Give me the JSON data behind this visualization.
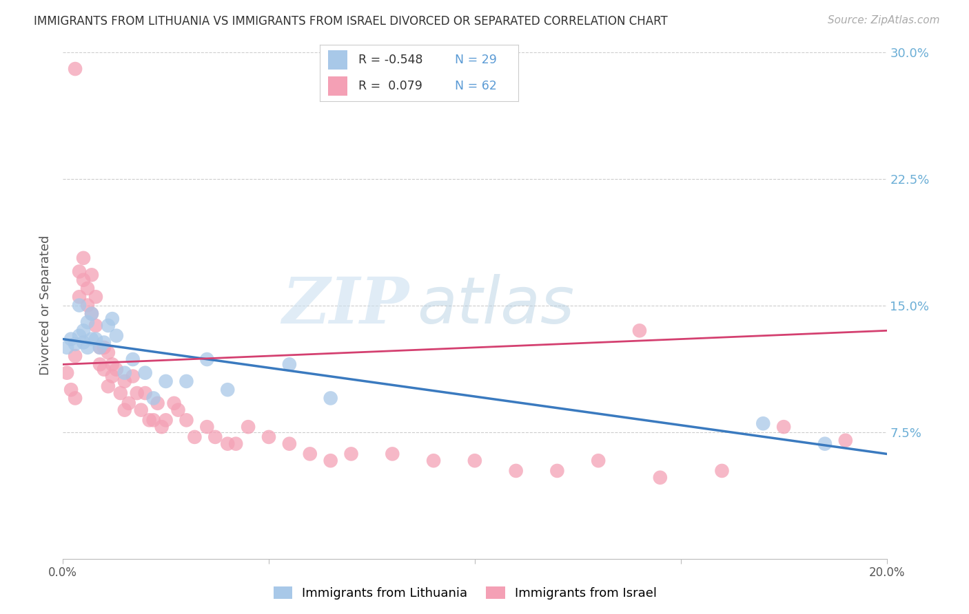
{
  "title": "IMMIGRANTS FROM LITHUANIA VS IMMIGRANTS FROM ISRAEL DIVORCED OR SEPARATED CORRELATION CHART",
  "source": "Source: ZipAtlas.com",
  "ylabel": "Divorced or Separated",
  "legend_labels": [
    "Immigrants from Lithuania",
    "Immigrants from Israel"
  ],
  "blue_color": "#a8c8e8",
  "pink_color": "#f4a0b5",
  "blue_line_color": "#3a7abf",
  "pink_line_color": "#d44070",
  "xlim": [
    0.0,
    0.2
  ],
  "ylim": [
    0.0,
    0.3
  ],
  "yticks_right": [
    0.075,
    0.15,
    0.225,
    0.3
  ],
  "ytick_labels_right": [
    "7.5%",
    "15.0%",
    "22.5%",
    "30.0%"
  ],
  "watermark_zip": "ZIP",
  "watermark_atlas": "atlas",
  "blue_scatter_x": [
    0.001,
    0.002,
    0.003,
    0.004,
    0.004,
    0.005,
    0.005,
    0.006,
    0.006,
    0.007,
    0.007,
    0.008,
    0.009,
    0.01,
    0.011,
    0.012,
    0.013,
    0.015,
    0.017,
    0.02,
    0.022,
    0.025,
    0.03,
    0.035,
    0.04,
    0.055,
    0.065,
    0.17,
    0.185
  ],
  "blue_scatter_y": [
    0.125,
    0.13,
    0.127,
    0.132,
    0.15,
    0.128,
    0.135,
    0.14,
    0.125,
    0.13,
    0.145,
    0.13,
    0.125,
    0.128,
    0.138,
    0.142,
    0.132,
    0.11,
    0.118,
    0.11,
    0.095,
    0.105,
    0.105,
    0.118,
    0.1,
    0.115,
    0.095,
    0.08,
    0.068
  ],
  "pink_scatter_x": [
    0.001,
    0.002,
    0.003,
    0.003,
    0.004,
    0.004,
    0.005,
    0.005,
    0.006,
    0.006,
    0.007,
    0.007,
    0.008,
    0.008,
    0.009,
    0.009,
    0.01,
    0.01,
    0.011,
    0.011,
    0.012,
    0.012,
    0.013,
    0.014,
    0.015,
    0.015,
    0.016,
    0.017,
    0.018,
    0.019,
    0.02,
    0.021,
    0.022,
    0.023,
    0.024,
    0.025,
    0.027,
    0.028,
    0.03,
    0.032,
    0.035,
    0.037,
    0.04,
    0.042,
    0.045,
    0.05,
    0.055,
    0.06,
    0.065,
    0.07,
    0.08,
    0.09,
    0.1,
    0.11,
    0.12,
    0.13,
    0.145,
    0.16,
    0.175,
    0.19,
    0.003,
    0.14
  ],
  "pink_scatter_y": [
    0.11,
    0.1,
    0.095,
    0.12,
    0.17,
    0.155,
    0.178,
    0.165,
    0.16,
    0.15,
    0.168,
    0.145,
    0.155,
    0.138,
    0.125,
    0.115,
    0.125,
    0.112,
    0.122,
    0.102,
    0.115,
    0.108,
    0.112,
    0.098,
    0.105,
    0.088,
    0.092,
    0.108,
    0.098,
    0.088,
    0.098,
    0.082,
    0.082,
    0.092,
    0.078,
    0.082,
    0.092,
    0.088,
    0.082,
    0.072,
    0.078,
    0.072,
    0.068,
    0.068,
    0.078,
    0.072,
    0.068,
    0.062,
    0.058,
    0.062,
    0.062,
    0.058,
    0.058,
    0.052,
    0.052,
    0.058,
    0.048,
    0.052,
    0.078,
    0.07,
    0.29,
    0.135
  ],
  "figsize": [
    14.06,
    8.92
  ],
  "dpi": 100
}
